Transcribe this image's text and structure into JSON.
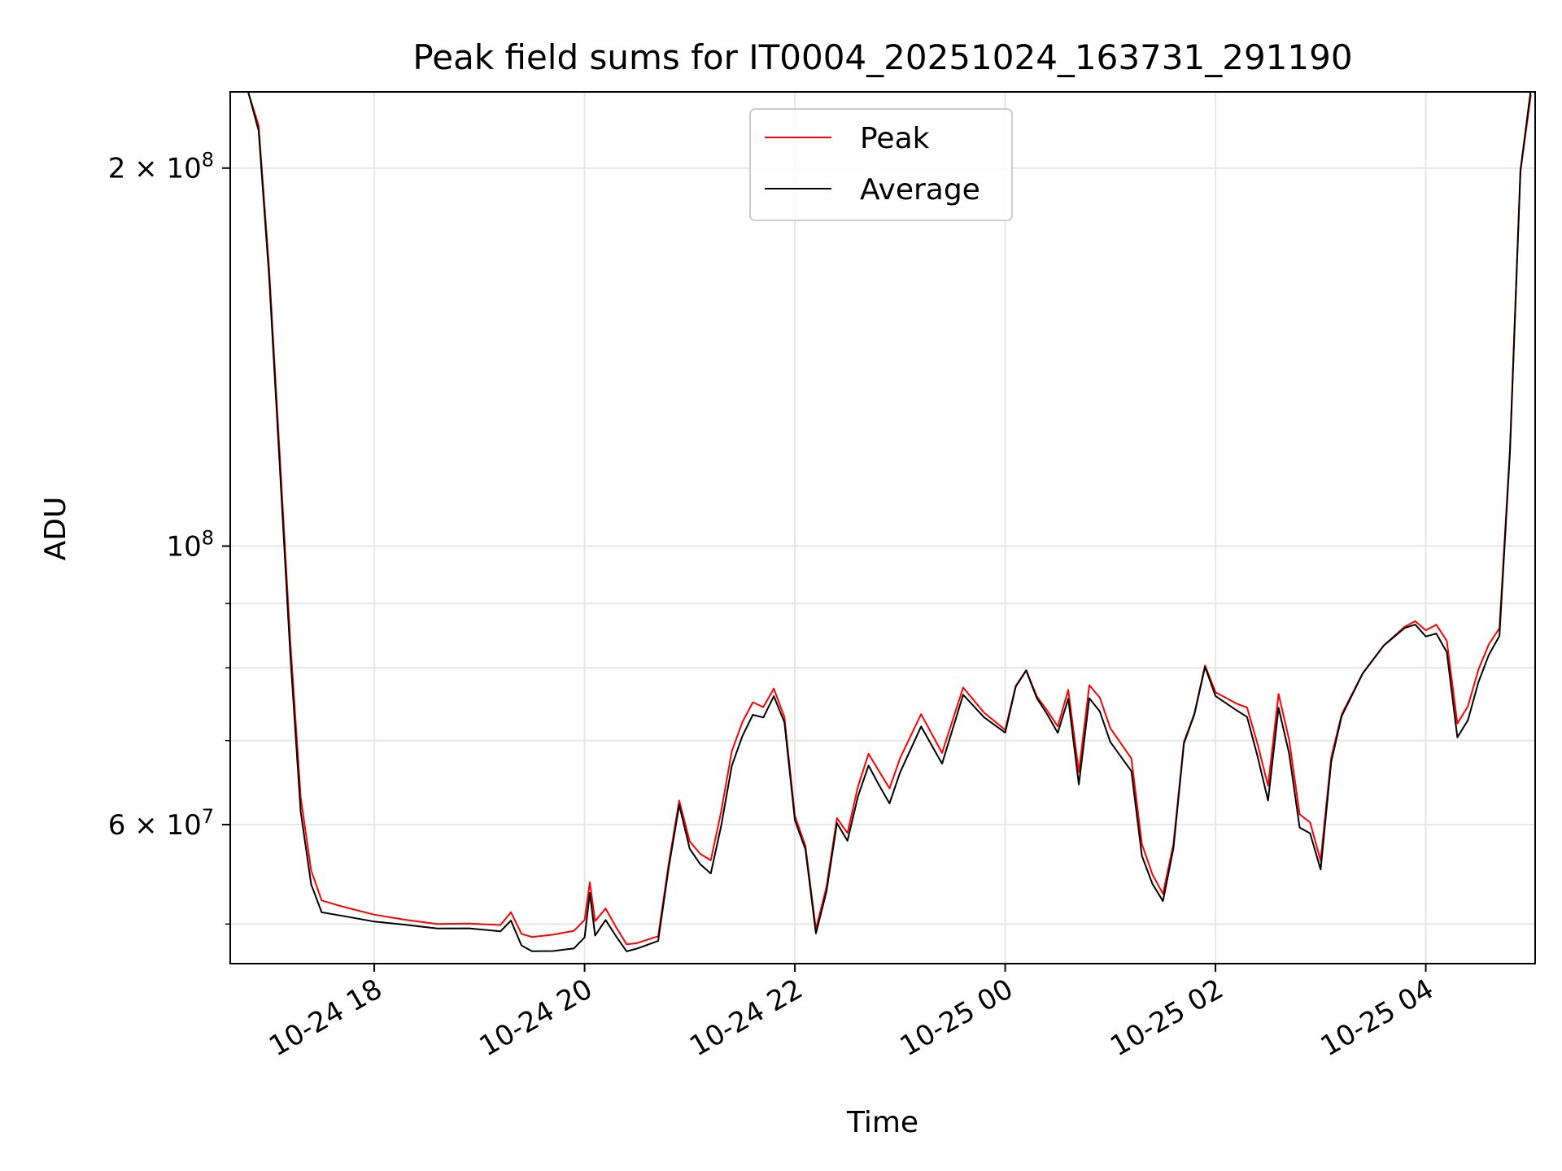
{
  "chart_data": {
    "type": "line",
    "title": "Peak field sums for IT0004_20251024_163731_291190",
    "xlabel": "Time",
    "ylabel": "ADU",
    "yscale": "log",
    "grid": true,
    "legend_position": "upper-center",
    "xlim_hours": [
      16.63,
      5.04
    ],
    "ylim": [
      46500000,
      230000000
    ],
    "x_tick_labels": [
      "10-24 18",
      "10-24 20",
      "10-24 22",
      "10-25 00",
      "10-25 02",
      "10-25 04"
    ],
    "x_tick_hours": [
      18,
      20,
      22,
      24,
      26,
      28
    ],
    "y_major_ticks": [
      {
        "value": 60000000,
        "label_mantissa": "6 × 10",
        "label_exp": "7"
      },
      {
        "value": 100000000,
        "label_mantissa": "10",
        "label_exp": "8"
      },
      {
        "value": 200000000,
        "label_mantissa": "2 × 10",
        "label_exp": "8"
      }
    ],
    "y_minor_ticks": [
      50000000,
      70000000,
      80000000,
      90000000
    ],
    "x_hours": [
      16.8,
      16.9,
      17.0,
      17.1,
      17.2,
      17.3,
      17.4,
      17.5,
      17.7,
      18.0,
      18.3,
      18.6,
      18.9,
      19.2,
      19.3,
      19.4,
      19.5,
      19.7,
      19.9,
      20.0,
      20.05,
      20.1,
      20.2,
      20.3,
      20.4,
      20.5,
      20.7,
      20.8,
      20.9,
      21.0,
      21.1,
      21.2,
      21.3,
      21.4,
      21.5,
      21.6,
      21.7,
      21.8,
      21.9,
      22.0,
      22.1,
      22.2,
      22.3,
      22.4,
      22.5,
      22.6,
      22.7,
      22.8,
      22.9,
      23.0,
      23.2,
      23.4,
      23.6,
      23.8,
      24.0,
      24.1,
      24.2,
      24.3,
      24.4,
      24.5,
      24.6,
      24.7,
      24.8,
      24.9,
      25.0,
      25.2,
      25.3,
      25.4,
      25.5,
      25.6,
      25.7,
      25.8,
      25.9,
      26.0,
      26.2,
      26.3,
      26.4,
      26.5,
      26.6,
      26.7,
      26.8,
      26.9,
      27.0,
      27.1,
      27.2,
      27.4,
      27.6,
      27.8,
      27.9,
      28.0,
      28.1,
      28.2,
      28.3,
      28.4,
      28.5,
      28.6,
      28.7,
      28.8,
      28.9,
      29.0
    ],
    "series": [
      {
        "name": "Peak",
        "color": "#ff0000",
        "values": [
          230000000,
          215000000,
          165000000,
          118000000,
          84000000,
          63000000,
          55000000,
          52000000,
          51500000,
          51000000,
          50800000,
          50500000,
          50400000,
          50000000,
          51000000,
          49000000,
          48800000,
          49000000,
          49200000,
          50000000,
          53500000,
          50000000,
          51500000,
          50000000,
          48500000,
          48500000,
          49000000,
          56000000,
          63000000,
          58500000,
          57000000,
          56000000,
          61000000,
          68000000,
          72000000,
          75000000,
          74500000,
          77000000,
          73000000,
          61000000,
          58000000,
          50000000,
          54000000,
          61000000,
          59000000,
          64000000,
          68000000,
          66000000,
          64000000,
          67500000,
          73000000,
          68000000,
          77000000,
          74000000,
          72000000,
          78000000,
          80000000,
          76000000,
          74000000,
          72000000,
          77000000,
          66000000,
          77000000,
          75000000,
          71000000,
          67500000,
          58000000,
          55000000,
          53000000,
          58000000,
          70000000,
          74000000,
          81000000,
          77000000,
          75000000,
          74000000,
          69000000,
          64000000,
          76000000,
          70000000,
          61000000,
          60000000,
          56000000,
          68000000,
          74000000,
          80000000,
          84000000,
          86500000,
          87000000,
          85500000,
          86500000,
          84000000,
          72000000,
          74000000,
          79000000,
          83000000,
          86000000,
          120000000,
          200000000,
          230000000
        ]
      },
      {
        "name": "Average",
        "color": "#000000",
        "values": [
          230000000,
          214000000,
          164000000,
          117000000,
          83000000,
          62000000,
          54000000,
          51000000,
          50500000,
          50000000,
          49800000,
          49500000,
          49400000,
          49000000,
          50000000,
          48000000,
          47800000,
          48000000,
          48200000,
          49000000,
          53000000,
          49000000,
          50500000,
          49000000,
          47500000,
          47500000,
          48000000,
          55000000,
          62000000,
          57500000,
          56000000,
          55000000,
          60000000,
          67000000,
          71000000,
          74000000,
          73500000,
          76000000,
          72000000,
          60000000,
          57000000,
          49000000,
          53000000,
          60000000,
          58000000,
          63000000,
          67000000,
          65000000,
          63000000,
          66500000,
          72000000,
          67000000,
          76000000,
          73000000,
          71000000,
          77000000,
          79000000,
          75000000,
          73000000,
          71000000,
          76000000,
          65000000,
          76000000,
          74000000,
          70000000,
          66500000,
          57000000,
          54000000,
          52000000,
          57000000,
          69000000,
          73000000,
          80000000,
          76000000,
          74000000,
          73000000,
          68000000,
          63000000,
          75000000,
          69000000,
          60000000,
          59000000,
          55000000,
          67000000,
          73000000,
          79000000,
          83000000,
          85500000,
          86000000,
          84500000,
          85500000,
          83000000,
          71000000,
          73000000,
          78000000,
          82000000,
          85000000,
          119000000,
          199000000,
          230000000
        ]
      }
    ]
  }
}
